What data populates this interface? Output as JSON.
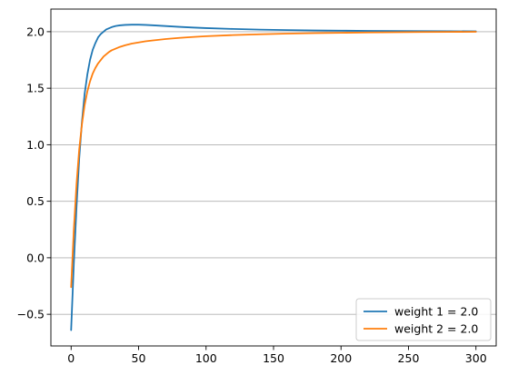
{
  "chart_data": {
    "type": "line",
    "title": "",
    "xlabel": "",
    "ylabel": "",
    "xlim": [
      -15,
      315
    ],
    "ylim": [
      -0.78,
      2.2
    ],
    "grid": "horizontal",
    "legend_position": "lower-right",
    "x_ticks": [
      0,
      50,
      100,
      150,
      200,
      250,
      300
    ],
    "y_ticks": [
      -0.5,
      0.0,
      0.5,
      1.0,
      1.5,
      2.0
    ],
    "x_tick_labels": [
      "0",
      "50",
      "100",
      "150",
      "200",
      "250",
      "300"
    ],
    "y_tick_labels": [
      "−0.5",
      "0.0",
      "0.5",
      "1.0",
      "1.5",
      "2.0"
    ],
    "series": [
      {
        "name": "weight 1 = 2.0",
        "color": "#1f77b4",
        "x": [
          0,
          2,
          4,
          6,
          8,
          10,
          12,
          14,
          16,
          18,
          20,
          22,
          24,
          26,
          28,
          30,
          33,
          36,
          40,
          45,
          50,
          55,
          60,
          70,
          80,
          90,
          100,
          120,
          140,
          160,
          180,
          200,
          220,
          240,
          260,
          280,
          300
        ],
        "values": [
          -0.64,
          -0.05,
          0.45,
          0.88,
          1.2,
          1.45,
          1.62,
          1.75,
          1.84,
          1.9,
          1.95,
          1.98,
          2.0,
          2.02,
          2.03,
          2.04,
          2.05,
          2.056,
          2.06,
          2.062,
          2.062,
          2.06,
          2.057,
          2.05,
          2.043,
          2.037,
          2.032,
          2.024,
          2.018,
          2.014,
          2.011,
          2.009,
          2.007,
          2.006,
          2.005,
          2.004,
          2.003
        ]
      },
      {
        "name": "weight 2 = 2.0",
        "color": "#ff7f0e",
        "x": [
          0,
          2,
          4,
          6,
          8,
          10,
          12,
          14,
          16,
          18,
          20,
          22,
          24,
          26,
          28,
          30,
          33,
          36,
          40,
          45,
          50,
          55,
          60,
          70,
          80,
          90,
          100,
          120,
          140,
          160,
          180,
          200,
          220,
          240,
          260,
          280,
          300
        ],
        "values": [
          -0.26,
          0.25,
          0.65,
          0.96,
          1.18,
          1.35,
          1.47,
          1.56,
          1.63,
          1.68,
          1.72,
          1.75,
          1.78,
          1.8,
          1.82,
          1.835,
          1.85,
          1.865,
          1.88,
          1.895,
          1.905,
          1.915,
          1.922,
          1.935,
          1.945,
          1.953,
          1.96,
          1.97,
          1.977,
          1.983,
          1.987,
          1.99,
          1.993,
          1.995,
          1.997,
          1.998,
          1.999
        ]
      }
    ]
  }
}
